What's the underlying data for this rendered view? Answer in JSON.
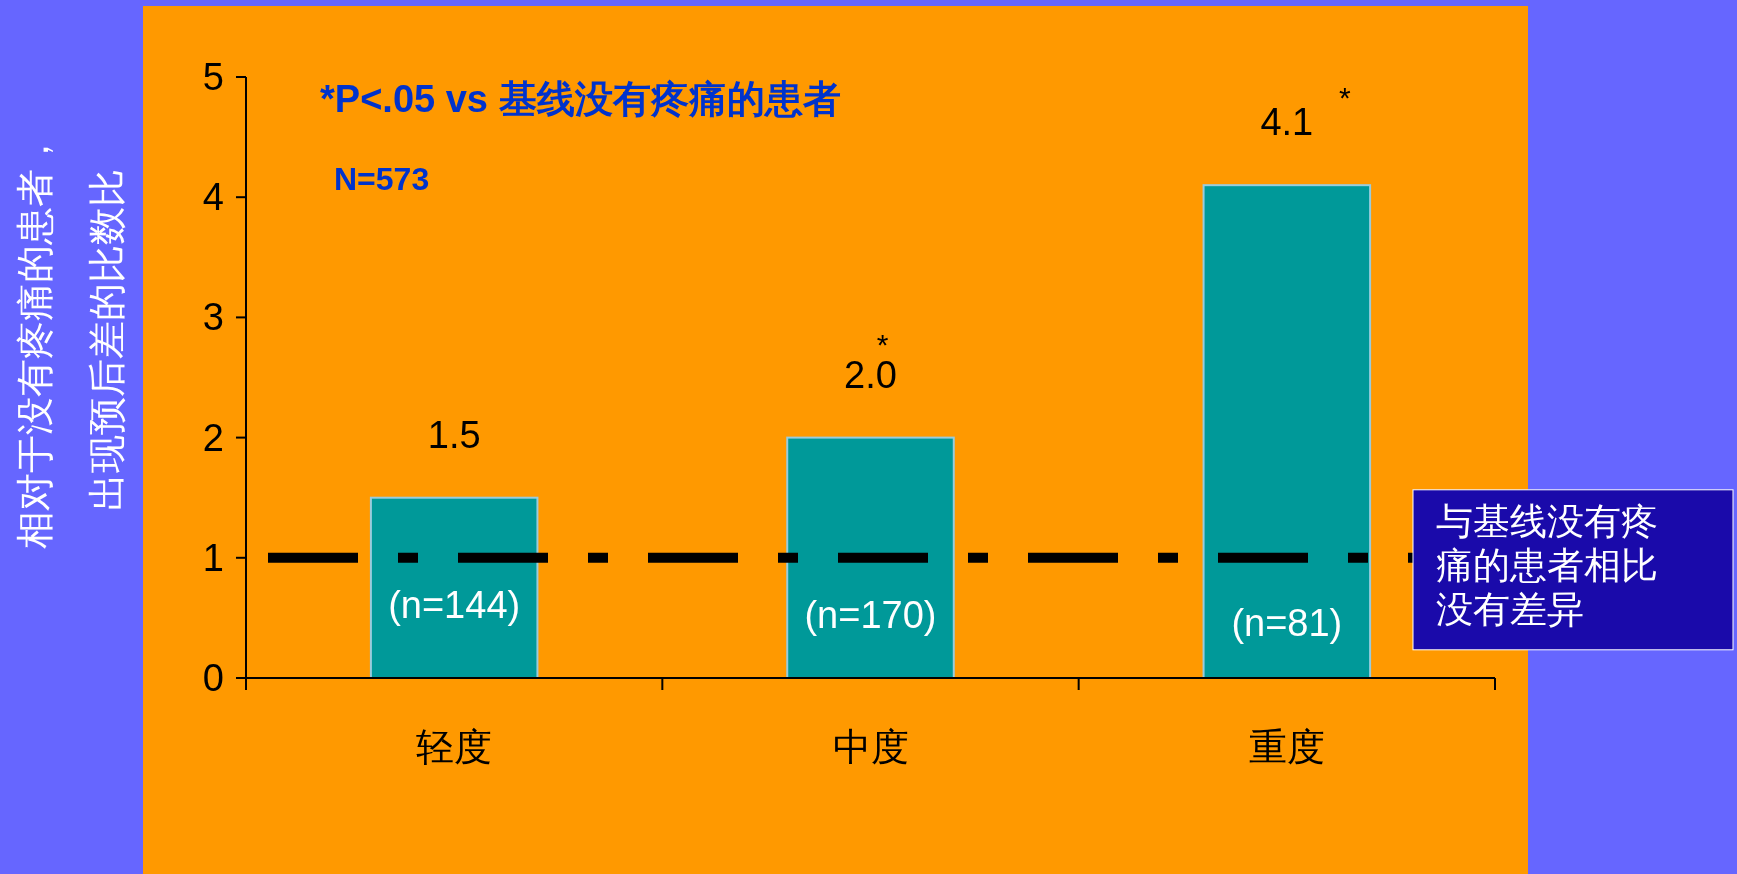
{
  "chart_data": {
    "type": "bar",
    "categories": [
      "轻度",
      "中度",
      "重度"
    ],
    "values": [
      1.5,
      2.0,
      4.1
    ],
    "value_labels": [
      "1.5",
      "2.0",
      "4.1"
    ],
    "color": "#009999",
    "ylabel": "相对于没有疼痛的患者，出现预后差的比数比",
    "ylim": [
      0,
      5
    ],
    "yticks": [
      0,
      1,
      2,
      3,
      4,
      5
    ],
    "ref_lines": [
      {
        "axis": "y",
        "value": 1,
        "label": "与基线没有疼痛的患者相比没有差异",
        "color": "#000000",
        "line_style": "dashed"
      }
    ],
    "annotations": [
      "*P<.05 vs 基线没有疼痛的患者",
      "N=573",
      "(n=144)",
      "(n=170)",
      "(n=81)",
      "*",
      "*"
    ]
  }
}
